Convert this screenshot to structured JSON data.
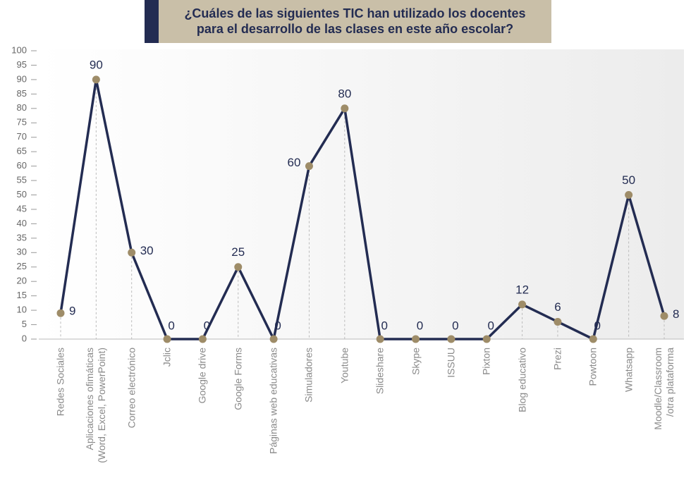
{
  "chart_data": {
    "type": "line",
    "title": "¿Cuáles de las siguientes TIC han utilizado los docentes\npara el desarrollo de las clases en este año escolar?",
    "categories": [
      "Redes Sociales",
      "Aplicaciones ofimáticas\n(Word, Excel, PowerPoint)",
      "Correo electrónico",
      "Jclic",
      "Google drive",
      "Google Forms",
      "Páginas web educativas",
      "Simuladores",
      "Youtube",
      "Slideshare",
      "Skype",
      "ISSUU",
      "Pixton",
      "Blog educativo",
      "Prezi",
      "Powtoon",
      "Whatsapp",
      "Moodle/Classroom\n/otra plataforma"
    ],
    "values": [
      9,
      90,
      30,
      0,
      0,
      25,
      0,
      60,
      80,
      0,
      0,
      0,
      0,
      12,
      6,
      0,
      50,
      8
    ],
    "color": "#232c52",
    "marker_color": "#9e8c68",
    "ylim": [
      0,
      100
    ],
    "yticks": [
      0,
      5,
      10,
      15,
      20,
      25,
      30,
      35,
      40,
      45,
      50,
      55,
      60,
      65,
      70,
      75,
      80,
      85,
      90,
      95,
      100
    ]
  }
}
